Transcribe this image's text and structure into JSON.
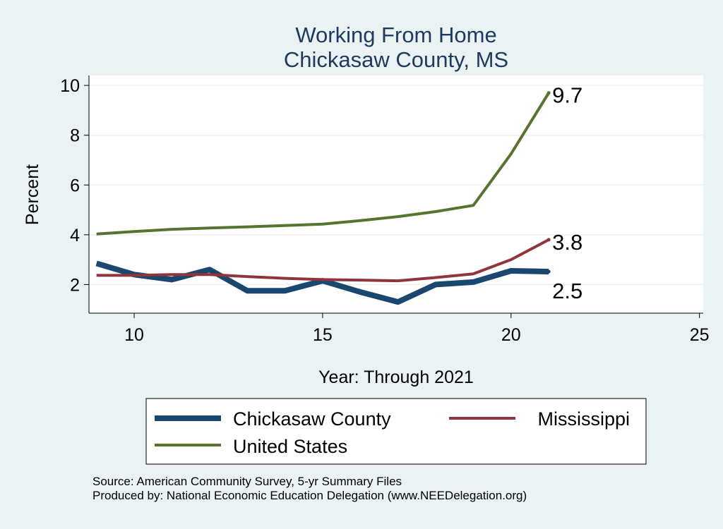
{
  "chart_data": {
    "type": "line",
    "title": "Working From Home",
    "subtitle": "Chickasaw County, MS",
    "xlabel": "Year: Through 2021",
    "ylabel": "Percent",
    "xlim": [
      8.8,
      25.1
    ],
    "ylim": [
      0.85,
      10.4
    ],
    "xticks": [
      10,
      15,
      20,
      25
    ],
    "yticks": [
      2,
      4,
      6,
      8,
      10
    ],
    "grid": true,
    "legend_position": "bottom",
    "series": [
      {
        "name": "Chickasaw County",
        "color": "#1a476f",
        "x": [
          9,
          10,
          11,
          12,
          13,
          14,
          15,
          16,
          17,
          18,
          19,
          20,
          21
        ],
        "values": [
          2.85,
          2.4,
          2.2,
          2.6,
          1.75,
          1.75,
          2.15,
          1.7,
          1.3,
          2.0,
          2.1,
          2.55,
          2.52
        ],
        "end_label": "2.5"
      },
      {
        "name": "Mississippi",
        "color": "#90353b",
        "x": [
          9,
          10,
          11,
          12,
          13,
          14,
          15,
          16,
          17,
          18,
          19,
          20,
          21
        ],
        "values": [
          2.37,
          2.37,
          2.4,
          2.4,
          2.32,
          2.25,
          2.2,
          2.18,
          2.15,
          2.28,
          2.43,
          3.0,
          3.8
        ],
        "end_label": "3.8"
      },
      {
        "name": "United States",
        "color": "#55752f",
        "x": [
          9,
          10,
          11,
          12,
          13,
          14,
          15,
          16,
          17,
          18,
          19,
          20,
          21
        ],
        "values": [
          4.03,
          4.13,
          4.22,
          4.27,
          4.32,
          4.37,
          4.43,
          4.57,
          4.73,
          4.93,
          5.18,
          7.25,
          9.7
        ],
        "end_label": "9.7"
      }
    ],
    "notes": [
      "Source: American Community Survey, 5-yr Summary Files",
      "Produced by: National Economic Education Delegation (www.NEEDelegation.org)"
    ]
  }
}
